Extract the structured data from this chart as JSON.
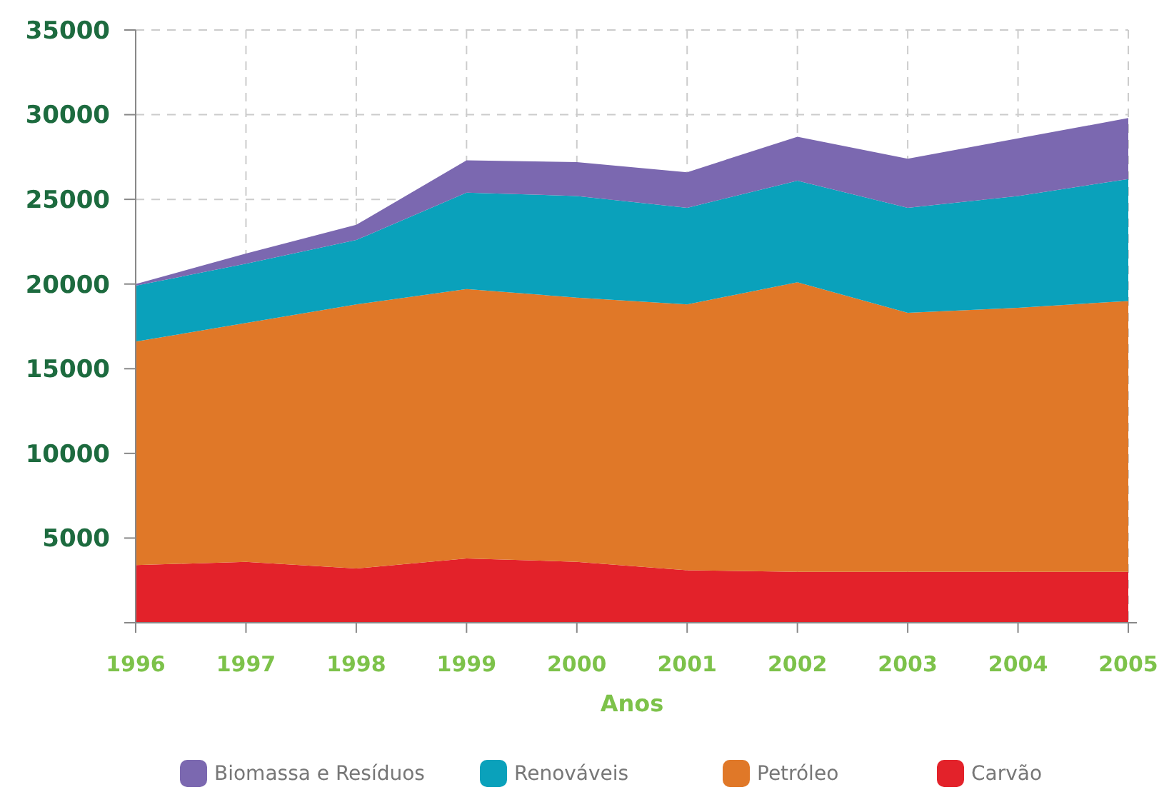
{
  "chart_data": {
    "type": "area",
    "stacked": true,
    "xlabel": "Anos",
    "categories": [
      "1996",
      "1997",
      "1998",
      "1999",
      "2000",
      "2001",
      "2002",
      "2003",
      "2004",
      "2005"
    ],
    "series": [
      {
        "name": "Carvão",
        "color": "#e3222a",
        "values": [
          3400,
          3600,
          3200,
          3800,
          3600,
          3100,
          3000,
          3000,
          3000,
          3000
        ]
      },
      {
        "name": "Petróleo",
        "color": "#e07828",
        "values": [
          13200,
          14100,
          15600,
          15900,
          15600,
          15700,
          17100,
          15300,
          15600,
          16000
        ]
      },
      {
        "name": "Renováveis",
        "color": "#0aa1bb",
        "values": [
          3300,
          3500,
          3800,
          5700,
          6000,
          5700,
          6000,
          6200,
          6600,
          7200
        ]
      },
      {
        "name": "Biomassa e Resíduos",
        "color": "#7b68b0",
        "values": [
          100,
          600,
          900,
          1900,
          2000,
          2100,
          2600,
          2900,
          3400,
          3600
        ]
      }
    ],
    "ylim": [
      0,
      35000
    ],
    "yticks": [
      {
        "value": 0,
        "label": null
      },
      5000,
      10000,
      15000,
      20000,
      25000,
      30000,
      35000
    ],
    "grid": true,
    "legend": "bottom"
  }
}
